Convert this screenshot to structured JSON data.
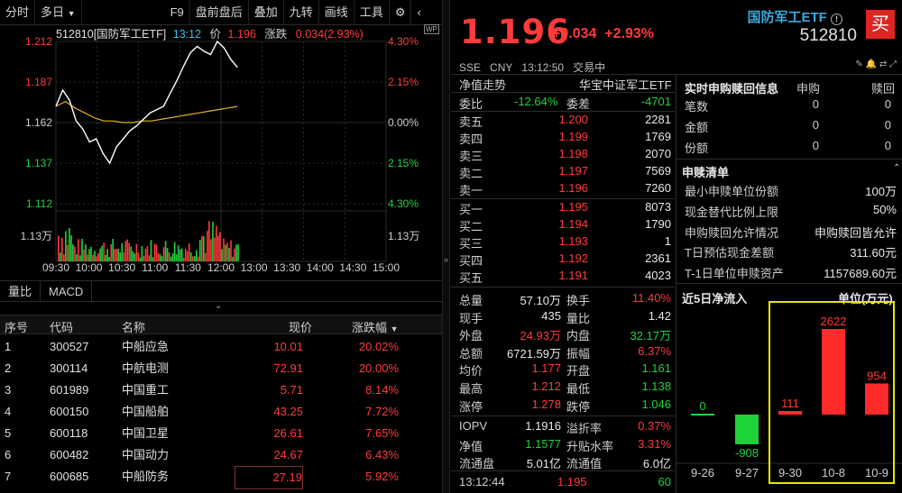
{
  "topbar": {
    "fenshi": "分时",
    "duori": "多日",
    "f9": "F9",
    "panqian": "盘前盘后",
    "diejia": "叠加",
    "jiuzhuan": "九转",
    "huaxian": "画线",
    "gongju": "工具"
  },
  "chart_info": {
    "title": "512810[国防军工ETF]",
    "time": "13:12",
    "price_label": "价",
    "price": "1.196",
    "chg_label": "涨跌",
    "chg": "0.034(2.93%)"
  },
  "chart_data": {
    "type": "line",
    "y_ticks": [
      "1.212",
      "1.187",
      "1.162",
      "1.137",
      "1.112"
    ],
    "pct_ticks": [
      "4.30%",
      "2.15%",
      "0.00%",
      "2.15%",
      "4.30%"
    ],
    "vol_label": "1.13万",
    "x_ticks": [
      "09:30",
      "10:00",
      "10:30",
      "11:00",
      "11:30",
      "12:00",
      "13:00",
      "13:30",
      "14:00",
      "14:30",
      "15:00"
    ],
    "price_series": [
      1.172,
      1.182,
      1.176,
      1.163,
      1.158,
      1.15,
      1.152,
      1.143,
      1.137,
      1.147,
      1.152,
      1.157,
      1.16,
      1.164,
      1.168,
      1.17,
      1.172,
      1.18,
      1.188,
      1.197,
      1.205,
      1.209,
      1.206,
      1.204,
      1.212,
      1.208,
      1.201,
      1.196
    ],
    "avg_series": [
      1.172,
      1.175,
      1.171,
      1.168,
      1.165,
      1.163,
      1.163,
      1.162,
      1.162,
      1.163,
      1.163,
      1.164,
      1.165,
      1.166,
      1.167,
      1.168,
      1.169,
      1.17,
      1.171,
      1.172
    ]
  },
  "bottom_tabs": [
    "量比",
    "MACD"
  ],
  "table": {
    "headers": [
      "序号",
      "代码",
      "名称",
      "现价",
      "涨跌幅"
    ],
    "rows": [
      [
        "1",
        "300527",
        "中船应急",
        "10.01",
        "20.02%"
      ],
      [
        "2",
        "300114",
        "中航电测",
        "72.91",
        "20.00%"
      ],
      [
        "3",
        "601989",
        "中国重工",
        "5.71",
        "8.14%"
      ],
      [
        "4",
        "600150",
        "中国船舶",
        "43.25",
        "7.72%"
      ],
      [
        "5",
        "600118",
        "中国卫星",
        "26.61",
        "7.65%"
      ],
      [
        "6",
        "600482",
        "中国动力",
        "24.67",
        "6.43%"
      ],
      [
        "7",
        "600685",
        "中船防务",
        "27.19",
        "5.92%"
      ]
    ]
  },
  "quote": {
    "price": "1.196",
    "change": "+0.034",
    "change_pct": "+2.93%",
    "name": "国防军工ETF",
    "code": "512810",
    "buy": "买",
    "market": "SSE",
    "currency": "CNY",
    "time": "13:12:50",
    "status": "交易中"
  },
  "orderbook": {
    "title": "净值走势",
    "index": "华宝中证军工ETF",
    "weibi_label": "委比",
    "weibi": "-12.64%",
    "weicha_label": "委差",
    "weicha": "-4701",
    "asks": [
      [
        "卖五",
        "1.200",
        "2281"
      ],
      [
        "卖四",
        "1.199",
        "1769"
      ],
      [
        "卖三",
        "1.198",
        "2070"
      ],
      [
        "卖二",
        "1.197",
        "7569"
      ],
      [
        "卖一",
        "1.196",
        "7260"
      ]
    ],
    "bids": [
      [
        "买一",
        "1.195",
        "8073"
      ],
      [
        "买二",
        "1.194",
        "1790"
      ],
      [
        "买三",
        "1.193",
        "1"
      ],
      [
        "买四",
        "1.192",
        "2361"
      ],
      [
        "买五",
        "1.191",
        "4023"
      ]
    ]
  },
  "stats": [
    [
      "总量",
      "57.10万",
      "换手",
      "11.40%"
    ],
    [
      "现手",
      "435",
      "量比",
      "1.42"
    ],
    [
      "外盘",
      "24.93万",
      "内盘",
      "32.17万"
    ],
    [
      "总额",
      "6721.59万",
      "振幅",
      "6.37%"
    ],
    [
      "均价",
      "1.177",
      "开盘",
      "1.161"
    ],
    [
      "最高",
      "1.212",
      "最低",
      "1.138"
    ],
    [
      "涨停",
      "1.278",
      "跌停",
      "1.046"
    ]
  ],
  "stats2": [
    [
      "IOPV",
      "1.1916",
      "溢折率",
      "0.37%"
    ],
    [
      "净值",
      "1.1577",
      "升贴水率",
      "3.31%"
    ],
    [
      "流通盘",
      "5.01亿",
      "流通值",
      "6.0亿"
    ]
  ],
  "last_trade": {
    "time": "13:12:44",
    "price": "1.195",
    "vol": "60"
  },
  "redeem": {
    "title": "实时申购赎回信息",
    "col1": "申购",
    "col2": "赎回",
    "rows": [
      [
        "笔数",
        "0",
        "0"
      ],
      [
        "金额",
        "0",
        "0"
      ],
      [
        "份额",
        "0",
        "0"
      ]
    ]
  },
  "list": {
    "title": "申赎清单",
    "rows": [
      [
        "最小申赎单位份额",
        "100万"
      ],
      [
        "现金替代比例上限",
        "50%"
      ],
      [
        "申购赎回允许情况",
        "申购赎回皆允许"
      ],
      [
        "T日预估现金差额",
        "311.60元"
      ],
      [
        "T-1日单位申赎资产",
        "1157689.60元"
      ]
    ]
  },
  "flow": {
    "title": "近5日净流入",
    "unit": "单位(万元)",
    "dates": [
      "9-26",
      "9-27",
      "9-30",
      "10-8",
      "10-9"
    ],
    "values": [
      0,
      -908,
      111,
      2622,
      954
    ]
  }
}
